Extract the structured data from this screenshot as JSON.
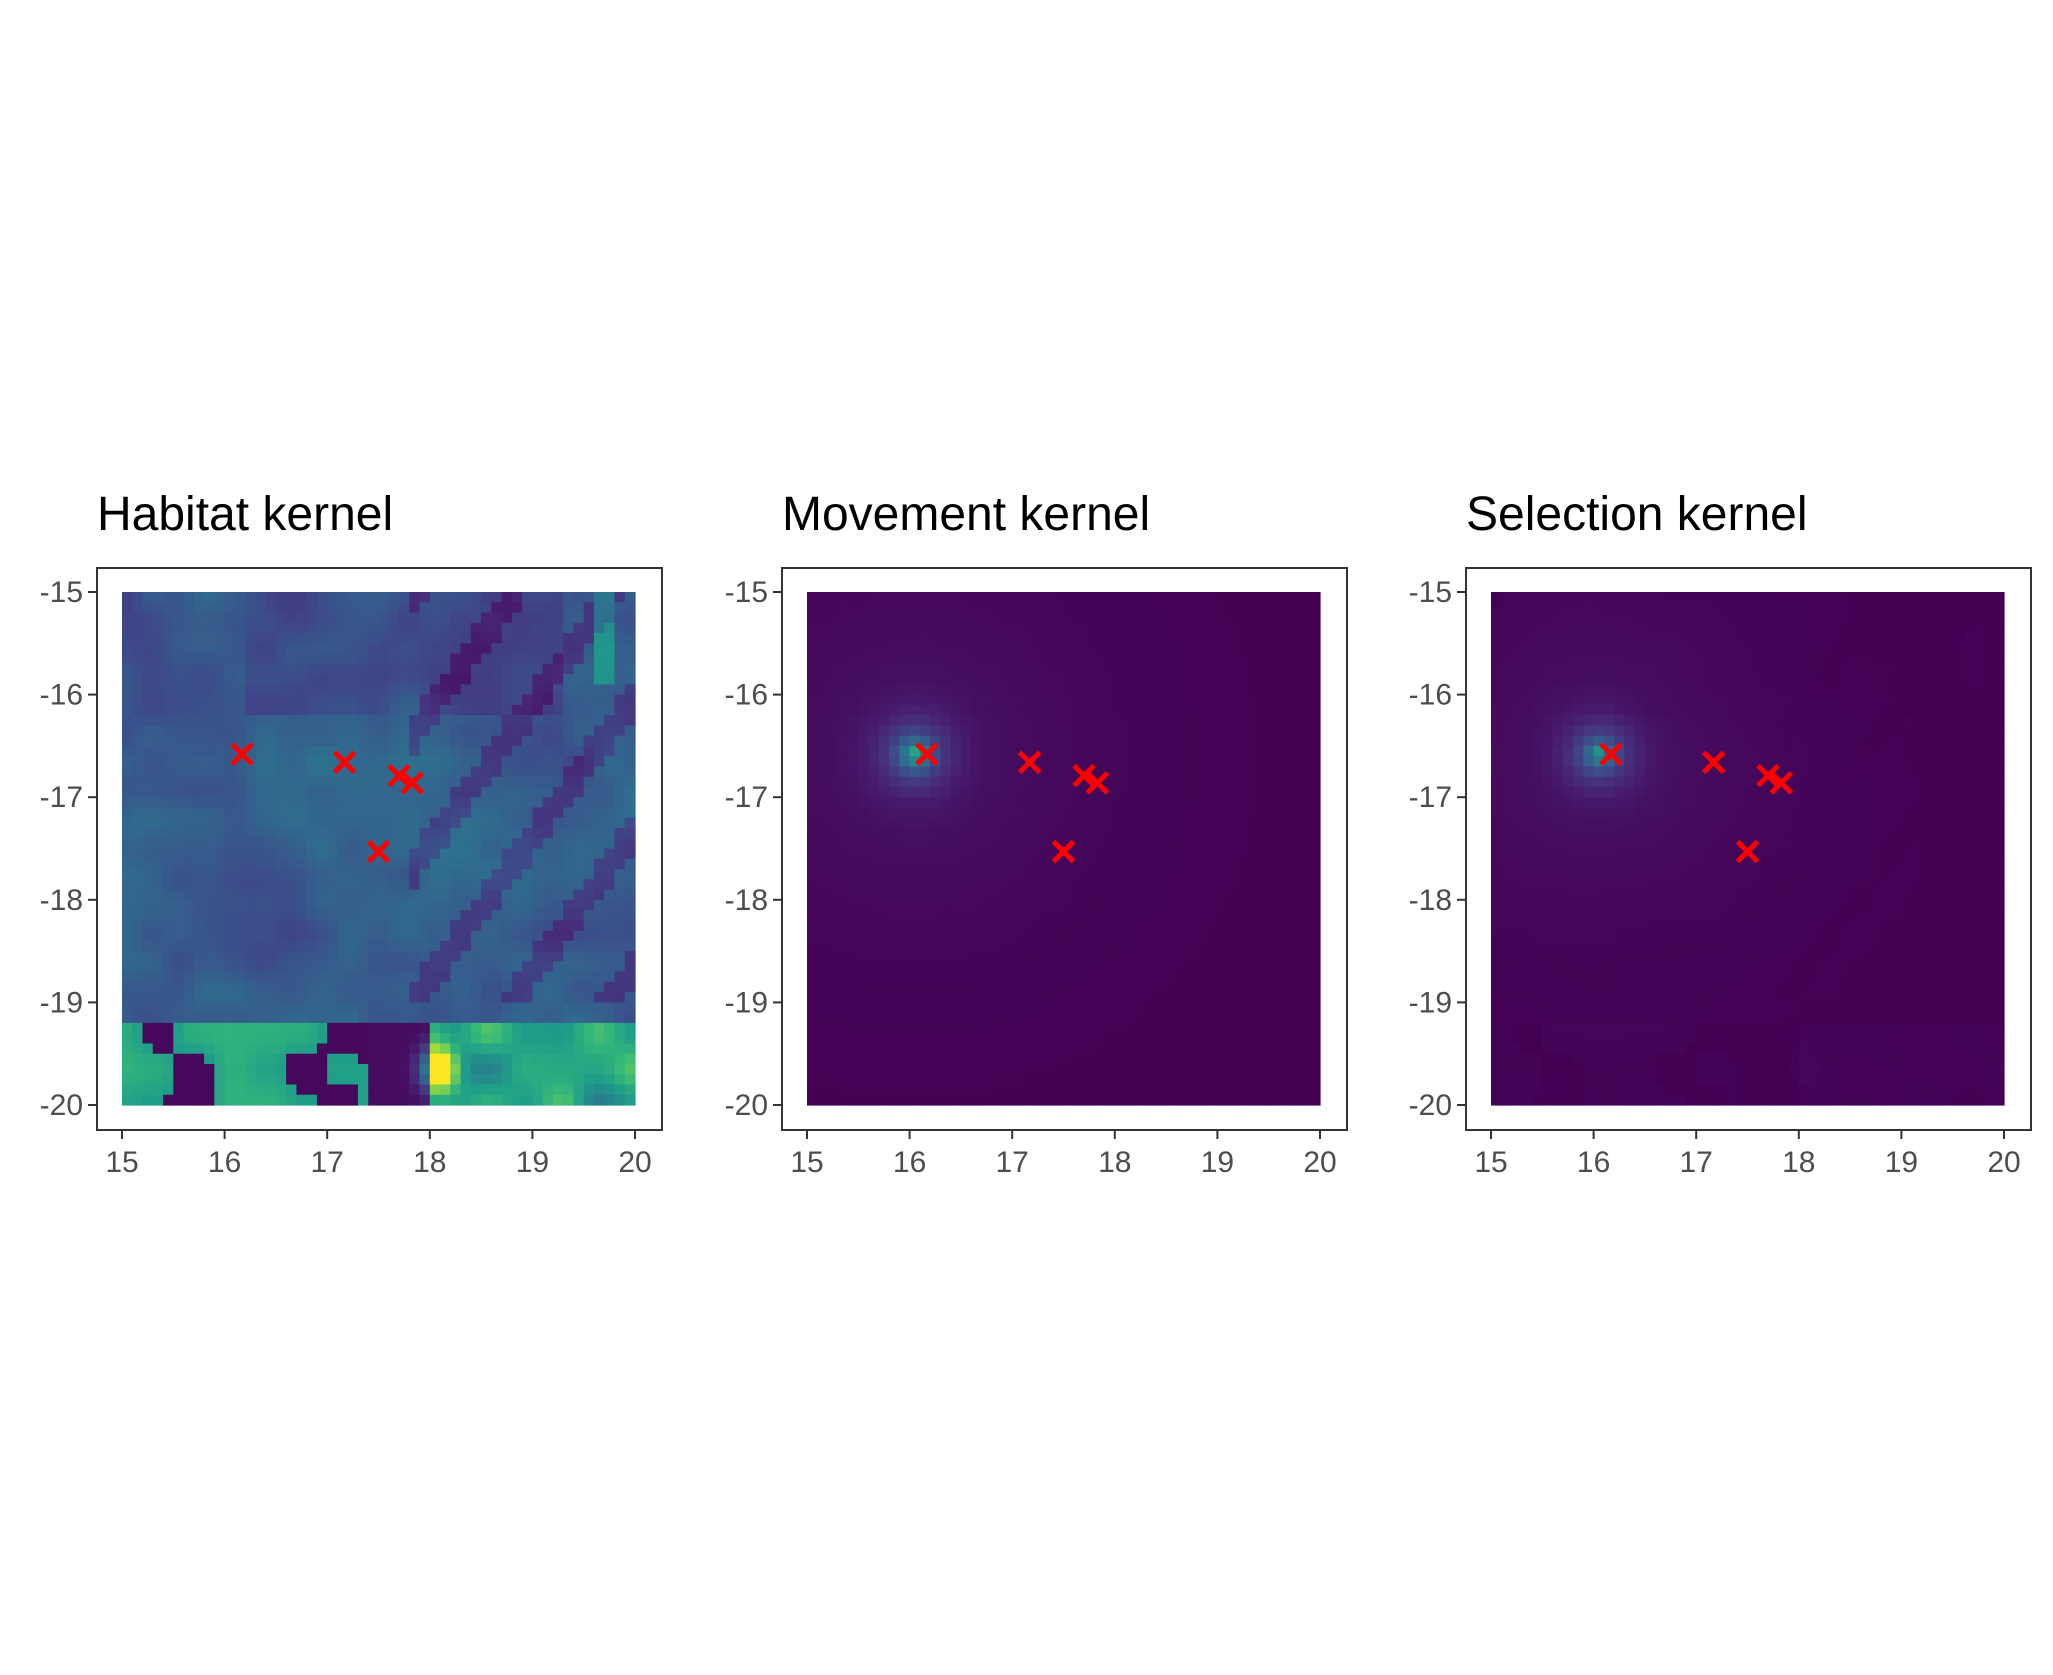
{
  "chart_data": [
    {
      "type": "heatmap",
      "title": "Habitat kernel",
      "xlabel": "",
      "ylabel": "",
      "xlim": [
        15,
        20
      ],
      "ylim": [
        -20,
        -15
      ],
      "x_ticks": [
        "15",
        "16",
        "17",
        "18",
        "19",
        "20"
      ],
      "y_ticks": [
        "-15",
        "-16",
        "-17",
        "-18",
        "-19",
        "-20"
      ],
      "colormap": "viridis",
      "legend": "none",
      "grid": false,
      "marker_color": "#ff0000",
      "marker_shape": "x",
      "points": [
        {
          "x": 16.17,
          "y": -16.58
        },
        {
          "x": 17.17,
          "y": -16.66
        },
        {
          "x": 17.7,
          "y": -16.79
        },
        {
          "x": 17.83,
          "y": -16.86
        },
        {
          "x": 17.5,
          "y": -17.53
        }
      ]
    },
    {
      "type": "heatmap",
      "title": "Movement kernel",
      "xlabel": "",
      "ylabel": "",
      "xlim": [
        15,
        20
      ],
      "ylim": [
        -20,
        -15
      ],
      "x_ticks": [
        "15",
        "16",
        "17",
        "18",
        "19",
        "20"
      ],
      "y_ticks": [
        "-15",
        "-16",
        "-17",
        "-18",
        "-19",
        "-20"
      ],
      "colormap": "viridis",
      "legend": "none",
      "grid": false,
      "peak": {
        "x": 16.05,
        "y": -16.58
      },
      "marker_color": "#ff0000",
      "marker_shape": "x",
      "points": [
        {
          "x": 16.17,
          "y": -16.58
        },
        {
          "x": 17.17,
          "y": -16.66
        },
        {
          "x": 17.7,
          "y": -16.79
        },
        {
          "x": 17.83,
          "y": -16.86
        },
        {
          "x": 17.5,
          "y": -17.53
        }
      ]
    },
    {
      "type": "heatmap",
      "title": "Selection kernel",
      "xlabel": "",
      "ylabel": "",
      "xlim": [
        15,
        20
      ],
      "ylim": [
        -20,
        -15
      ],
      "x_ticks": [
        "15",
        "16",
        "17",
        "18",
        "19",
        "20"
      ],
      "y_ticks": [
        "-15",
        "-16",
        "-17",
        "-18",
        "-19",
        "-20"
      ],
      "colormap": "viridis",
      "legend": "none",
      "grid": false,
      "peak": {
        "x": 16.05,
        "y": -16.58
      },
      "marker_color": "#ff0000",
      "marker_shape": "x",
      "points": [
        {
          "x": 16.17,
          "y": -16.58
        },
        {
          "x": 17.17,
          "y": -16.66
        },
        {
          "x": 17.7,
          "y": -16.79
        },
        {
          "x": 17.83,
          "y": -16.86
        },
        {
          "x": 17.5,
          "y": -17.53
        }
      ]
    }
  ]
}
